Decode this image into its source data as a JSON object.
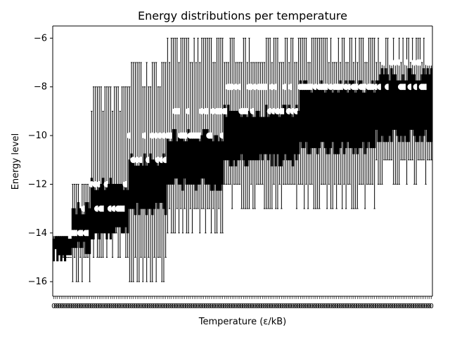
{
  "chart_data": {
    "type": "box",
    "title": "Energy distributions per temperature",
    "xlabel": "Temperature (ε/kB)",
    "ylabel": "Energy level",
    "ylim": [
      -16.6,
      -5.5
    ],
    "yticks": [
      -16,
      -14,
      -12,
      -10,
      -8,
      -6
    ],
    "ytick_labels": [
      "−16",
      "−14",
      "−12",
      "−10",
      "−8",
      "−6"
    ],
    "x_categories_count": 200,
    "x_tick_labels_legible": false,
    "grid": false,
    "legend": "none",
    "regimes": [
      {
        "from": 0,
        "to": 10,
        "whisker_low": -15,
        "q1": -14.9,
        "median": -14.3,
        "q3": -14.0,
        "whisker_high": -14,
        "outliers": [
          -14
        ]
      },
      {
        "from": 10,
        "to": 20,
        "whisker_low": -16,
        "q1": -14.6,
        "median": -14,
        "q3": -13.0,
        "whisker_high": -12,
        "outliers": [
          -13,
          -14
        ]
      },
      {
        "from": 20,
        "to": 40,
        "whisker_low": -15,
        "q1": -14.0,
        "median": -13,
        "q3": -12.0,
        "whisker_high": -8,
        "outliers": [
          -12,
          -13
        ]
      },
      {
        "from": 40,
        "to": 60,
        "whisker_low": -16,
        "q1": -13.0,
        "median": -12,
        "q3": -11.0,
        "whisker_high": -7,
        "outliers": [
          -11,
          -10
        ]
      },
      {
        "from": 60,
        "to": 90,
        "whisker_low": -14,
        "q1": -12.0,
        "median": -11,
        "q3": -10.0,
        "whisker_high": -6,
        "outliers": [
          -10,
          -9
        ]
      },
      {
        "from": 90,
        "to": 130,
        "whisker_low": -13,
        "q1": -11.0,
        "median": -10,
        "q3": -9.0,
        "whisker_high": -6,
        "outliers": [
          -9,
          -8
        ]
      },
      {
        "from": 130,
        "to": 170,
        "whisker_low": -13,
        "q1": -10.5,
        "median": -9,
        "q3": -8.0,
        "whisker_high": -6,
        "outliers": [
          -8
        ]
      },
      {
        "from": 170,
        "to": 200,
        "whisker_low": -12,
        "q1": -10.0,
        "median": -9,
        "q3": -7.5,
        "whisker_high": -6,
        "outliers": [
          -8,
          -7
        ]
      }
    ]
  }
}
